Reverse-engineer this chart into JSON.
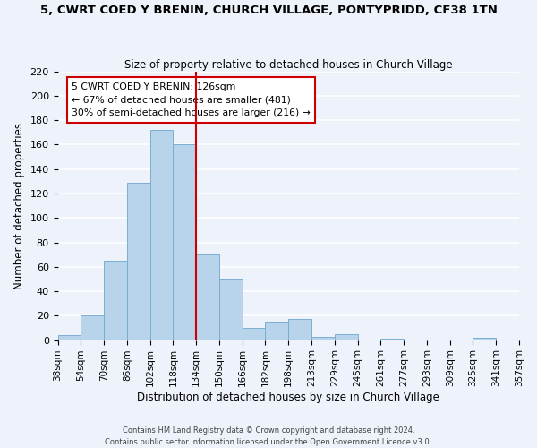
{
  "title": "5, CWRT COED Y BRENIN, CHURCH VILLAGE, PONTYPRIDD, CF38 1TN",
  "subtitle": "Size of property relative to detached houses in Church Village",
  "xlabel": "Distribution of detached houses by size in Church Village",
  "ylabel": "Number of detached properties",
  "bar_color": "#b8d4ea",
  "bar_edge_color": "#7aaed0",
  "bin_labels": [
    "38sqm",
    "54sqm",
    "70sqm",
    "86sqm",
    "102sqm",
    "118sqm",
    "134sqm",
    "150sqm",
    "166sqm",
    "182sqm",
    "198sqm",
    "213sqm",
    "229sqm",
    "245sqm",
    "261sqm",
    "277sqm",
    "293sqm",
    "309sqm",
    "325sqm",
    "341sqm",
    "357sqm"
  ],
  "values": [
    4,
    20,
    65,
    129,
    172,
    160,
    70,
    50,
    10,
    15,
    17,
    3,
    5,
    0,
    1,
    0,
    0,
    0,
    2,
    0
  ],
  "ylim": [
    0,
    220
  ],
  "yticks": [
    0,
    20,
    40,
    60,
    80,
    100,
    120,
    140,
    160,
    180,
    200,
    220
  ],
  "annotation_title": "5 CWRT COED Y BRENIN: 126sqm",
  "annotation_line1": "← 67% of detached houses are smaller (481)",
  "annotation_line2": "30% of semi-detached houses are larger (216) →",
  "footer1": "Contains HM Land Registry data © Crown copyright and database right 2024.",
  "footer2": "Contains public sector information licensed under the Open Government Licence v3.0.",
  "background_color": "#eef2fb",
  "plot_background": "#eef2fb",
  "grid_color": "#ffffff",
  "annotation_box_color": "#ffffff",
  "annotation_border_color": "#cc0000",
  "vertical_line_color": "#cc0000",
  "vertical_line_x": 5.5
}
